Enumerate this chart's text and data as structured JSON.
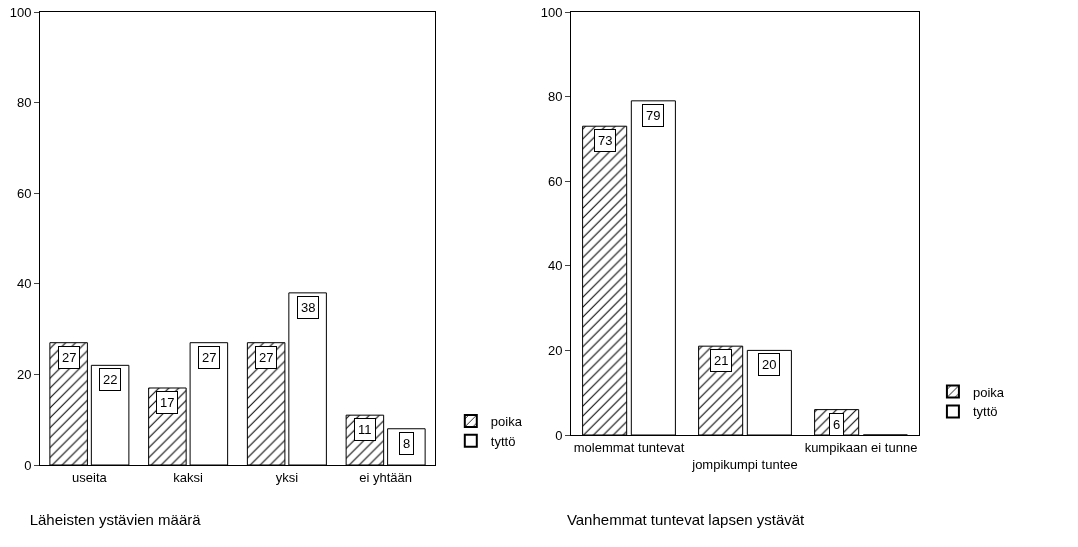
{
  "chart_data": [
    {
      "type": "bar",
      "title": "Läheisten ystävien määrä",
      "categories": [
        "useita",
        "kaksi",
        "yksi",
        "ei yhtään"
      ],
      "series": [
        {
          "name": "poika",
          "color": "#000000",
          "values": [
            27,
            17,
            27,
            11
          ]
        },
        {
          "name": "tyttö",
          "color": "#ffffff",
          "values": [
            22,
            27,
            38,
            8
          ]
        }
      ],
      "ylim": [
        0,
        100
      ],
      "yticks": [
        0,
        20,
        40,
        60,
        80,
        100
      ],
      "grid": false,
      "legend": "right",
      "data_labels": true
    },
    {
      "type": "bar",
      "title": "Vanhemmat tuntevat lapsen ystävät",
      "categories": [
        "molemmat tuntevat",
        "jompikumpi tuntee",
        "kumpikaan ei tunne"
      ],
      "series": [
        {
          "name": "poika",
          "color": "#000000",
          "values": [
            73,
            21,
            6
          ],
          "value_labels": [
            "73",
            "21",
            "6"
          ]
        },
        {
          "name": "tyttö",
          "color": "#ffffff",
          "values": [
            79,
            20,
            0
          ],
          "value_labels": [
            "79",
            "20",
            null
          ]
        }
      ],
      "ylim": [
        0,
        100
      ],
      "yticks": [
        0,
        20,
        40,
        60,
        80,
        100
      ],
      "grid": false,
      "legend": "right"
    }
  ]
}
